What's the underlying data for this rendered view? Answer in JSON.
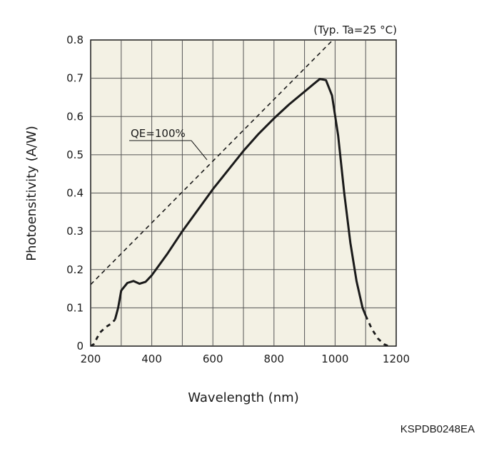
{
  "chart_data": {
    "type": "line",
    "condition": "(Typ. Ta=25 °C)",
    "xlabel": "Wavelength (nm)",
    "ylabel": "Photoensitivity (A/W)",
    "xlim": [
      200,
      1200
    ],
    "ylim": [
      0,
      0.8
    ],
    "x_ticks": [
      "200",
      "400",
      "600",
      "800",
      "1000",
      "1200"
    ],
    "y_ticks": [
      "0",
      "0.1",
      "0.2",
      "0.3",
      "0.4",
      "0.5",
      "0.6",
      "0.7",
      "0.8"
    ],
    "grid": true,
    "qe_annotation": "QE=100%",
    "figure_code": "KSPDB0248EA",
    "colors": {
      "plot_bg": "#f3f1e4",
      "grid": "#555555",
      "line": "#1a1a1a"
    },
    "series": [
      {
        "line_style": "dashed",
        "x": [
          200,
          210,
          230,
          250,
          270,
          280
        ],
        "y": [
          0.0,
          0.005,
          0.035,
          0.05,
          0.06,
          0.07
        ]
      },
      {
        "line_style": "solid",
        "x": [
          280,
          290,
          300,
          320,
          340,
          360,
          380,
          400,
          450,
          500,
          550,
          600,
          650,
          700,
          750,
          800,
          850,
          900,
          930,
          950,
          970,
          990,
          1010,
          1030,
          1050,
          1070,
          1090,
          1100
        ],
        "y": [
          0.07,
          0.1,
          0.145,
          0.165,
          0.17,
          0.163,
          0.168,
          0.185,
          0.24,
          0.3,
          0.355,
          0.41,
          0.46,
          0.51,
          0.555,
          0.595,
          0.632,
          0.665,
          0.685,
          0.698,
          0.695,
          0.655,
          0.55,
          0.4,
          0.27,
          0.17,
          0.1,
          0.08
        ]
      },
      {
        "line_style": "dashed",
        "x": [
          1100,
          1120,
          1140,
          1160,
          1175
        ],
        "y": [
          0.08,
          0.045,
          0.02,
          0.005,
          0.0
        ]
      },
      {
        "name": "QE=100%",
        "line_style": "dashed",
        "x": [
          200,
          1000
        ],
        "y": [
          0.161,
          0.806
        ]
      }
    ]
  }
}
